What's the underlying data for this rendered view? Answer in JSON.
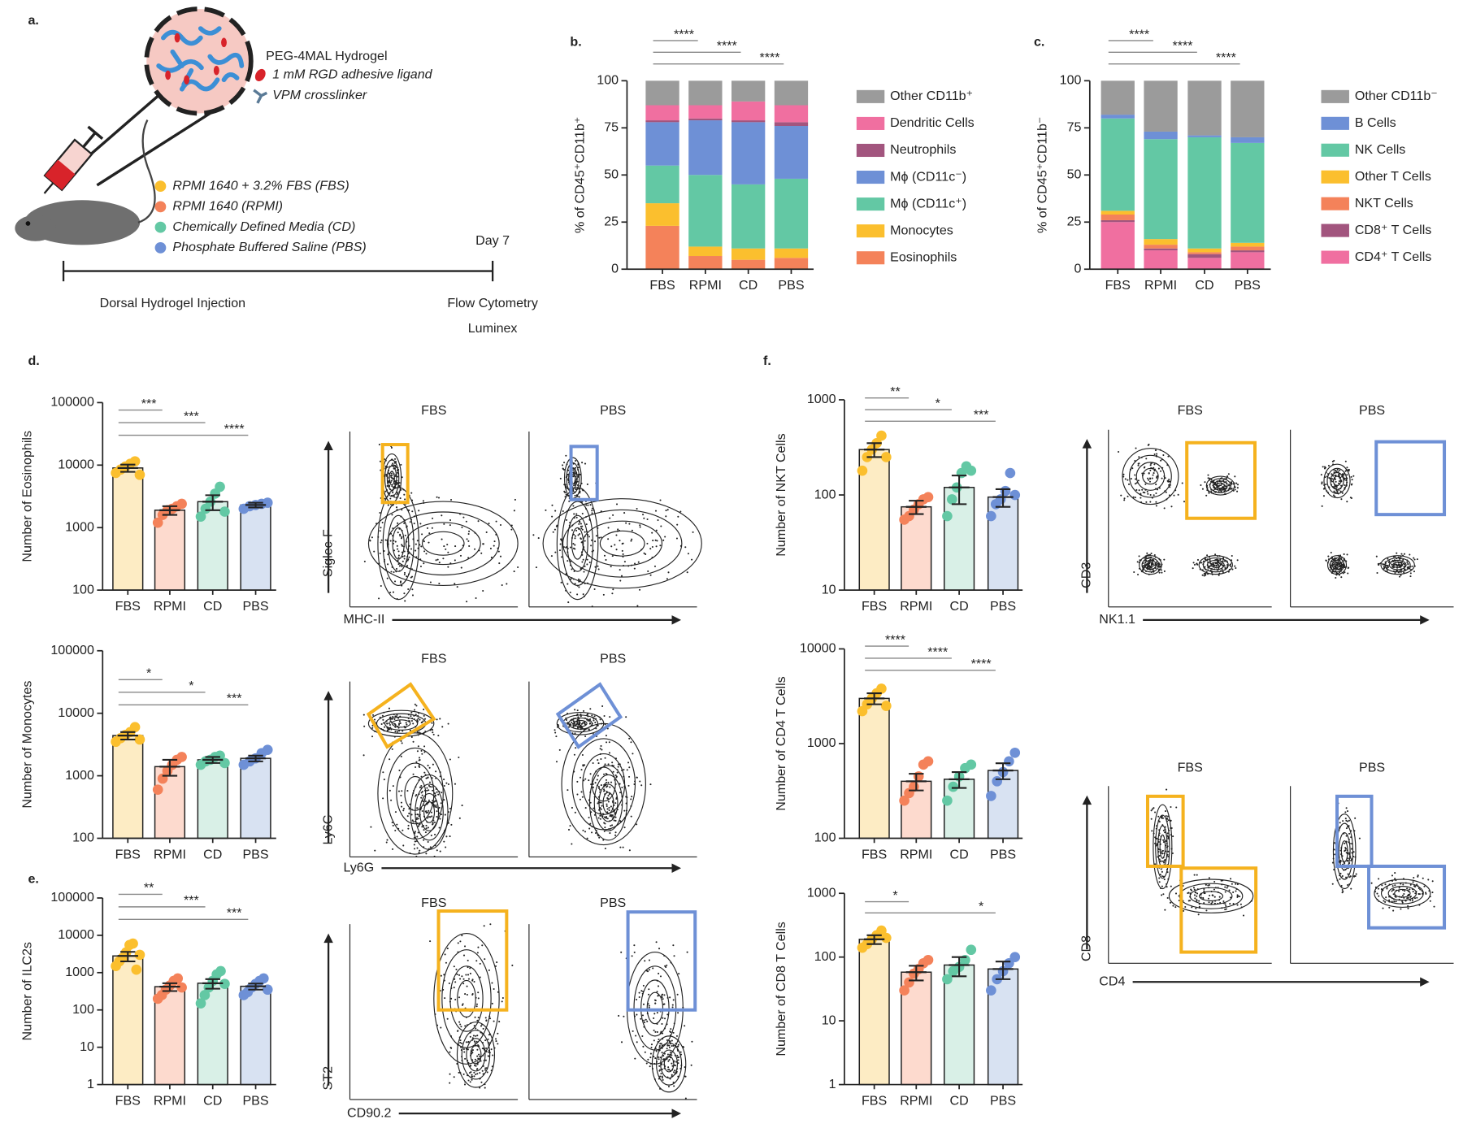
{
  "chart_data": [
    {
      "type": "stacked_bar",
      "y_label": "% of CD45⁺CD11b⁺",
      "categories": [
        "FBS",
        "RPMI",
        "CD",
        "PBS"
      ],
      "series": [
        {
          "name": "Eosinophils",
          "color": "#f4825a",
          "values": [
            23,
            7,
            5,
            6
          ]
        },
        {
          "name": "Monocytes",
          "color": "#fbbf2e",
          "values": [
            12,
            5,
            6,
            5
          ]
        },
        {
          "name": "Mϕ (CD11c⁺)",
          "color": "#63c8a4",
          "values": [
            20,
            38,
            34,
            37
          ]
        },
        {
          "name": "Mϕ (CD11c⁻)",
          "color": "#6e90d6",
          "values": [
            23,
            29,
            33,
            28
          ]
        },
        {
          "name": "Neutrophils",
          "color": "#a2557e",
          "values": [
            1,
            1,
            1,
            2
          ]
        },
        {
          "name": "Dendritic Cells",
          "color": "#f06fa0",
          "values": [
            8,
            7,
            10,
            9
          ]
        },
        {
          "name": "Other CD11b⁺",
          "color": "#9b9b9b",
          "values": [
            13,
            13,
            11,
            13
          ]
        }
      ],
      "ylim": [
        0,
        100
      ],
      "yticks": [
        0,
        25,
        50,
        75,
        100
      ],
      "significance": [
        {
          "from": "FBS",
          "to": "RPMI",
          "label": "****"
        },
        {
          "from": "FBS",
          "to": "CD",
          "label": "****"
        },
        {
          "from": "FBS",
          "to": "PBS",
          "label": "****"
        }
      ]
    },
    {
      "type": "stacked_bar",
      "y_label": "% of CD45⁺CD11b⁻",
      "categories": [
        "FBS",
        "RPMI",
        "CD",
        "PBS"
      ],
      "series": [
        {
          "name": "CD4⁺ T Cells",
          "color": "#f06fa0",
          "values": [
            25,
            10,
            6,
            9
          ]
        },
        {
          "name": "CD8⁺ T Cells",
          "color": "#a2557e",
          "values": [
            1,
            1,
            2,
            1
          ]
        },
        {
          "name": "NKT Cells",
          "color": "#f4825a",
          "values": [
            3,
            2,
            1,
            2
          ]
        },
        {
          "name": "Other T Cells",
          "color": "#fbbf2e",
          "values": [
            2,
            3,
            2,
            2
          ]
        },
        {
          "name": "NK Cells",
          "color": "#63c8a4",
          "values": [
            49,
            53,
            59,
            53
          ]
        },
        {
          "name": "B Cells",
          "color": "#6e90d6",
          "values": [
            2,
            4,
            1,
            3
          ]
        },
        {
          "name": "Other CD11b⁻",
          "color": "#9b9b9b",
          "values": [
            18,
            27,
            29,
            30
          ]
        }
      ],
      "ylim": [
        0,
        100
      ],
      "yticks": [
        0,
        25,
        50,
        75,
        100
      ],
      "significance": [
        {
          "from": "FBS",
          "to": "RPMI",
          "label": "****"
        },
        {
          "from": "FBS",
          "to": "CD",
          "label": "****"
        },
        {
          "from": "FBS",
          "to": "PBS",
          "label": "****"
        }
      ]
    },
    {
      "type": "bar",
      "y_label": "Number of Eosinophils",
      "log_scale": true,
      "categories": [
        "FBS",
        "RPMI",
        "CD",
        "PBS"
      ],
      "values": [
        9000,
        1900,
        2600,
        2300
      ],
      "errors": [
        1200,
        300,
        700,
        200
      ],
      "points": [
        [
          7500,
          8500,
          9500,
          10500,
          11500,
          7000
        ],
        [
          1200,
          1600,
          1900,
          2000,
          2200,
          2400
        ],
        [
          1500,
          2000,
          2600,
          3500,
          4500,
          1800
        ],
        [
          2000,
          2200,
          2300,
          2400,
          2500
        ]
      ],
      "colors": [
        "#fbbf2e",
        "#f4825a",
        "#63c8a4",
        "#6e90d6"
      ],
      "fill_colors": [
        "#fdecc4",
        "#fddace",
        "#d9f0e7",
        "#d8e2f2"
      ],
      "ylim": [
        100,
        100000
      ],
      "yticks": [
        100,
        1000,
        10000,
        100000
      ],
      "significance": [
        {
          "from": "FBS",
          "to": "RPMI",
          "label": "***"
        },
        {
          "from": "FBS",
          "to": "CD",
          "label": "***"
        },
        {
          "from": "FBS",
          "to": "PBS",
          "label": "****"
        }
      ]
    },
    {
      "type": "bar",
      "y_label": "Number of Monocytes",
      "log_scale": true,
      "categories": [
        "FBS",
        "RPMI",
        "CD",
        "PBS"
      ],
      "values": [
        4400,
        1400,
        1800,
        1900
      ],
      "errors": [
        600,
        400,
        200,
        200
      ],
      "points": [
        [
          3500,
          4000,
          4500,
          5000,
          6000,
          3800
        ],
        [
          600,
          900,
          1200,
          1500,
          1800,
          2000
        ],
        [
          1500,
          1700,
          1800,
          2000,
          2100,
          1600
        ],
        [
          1500,
          1700,
          1900,
          2300,
          2600
        ]
      ],
      "colors": [
        "#fbbf2e",
        "#f4825a",
        "#63c8a4",
        "#6e90d6"
      ],
      "fill_colors": [
        "#fdecc4",
        "#fddace",
        "#d9f0e7",
        "#d8e2f2"
      ],
      "ylim": [
        100,
        100000
      ],
      "yticks": [
        100,
        1000,
        10000,
        100000
      ],
      "significance": [
        {
          "from": "FBS",
          "to": "RPMI",
          "label": "*"
        },
        {
          "from": "FBS",
          "to": "CD",
          "label": "*"
        },
        {
          "from": "FBS",
          "to": "PBS",
          "label": "***"
        }
      ]
    },
    {
      "type": "bar",
      "y_label": "Number of ILC2s",
      "log_scale": true,
      "categories": [
        "FBS",
        "RPMI",
        "CD",
        "PBS"
      ],
      "values": [
        2800,
        420,
        520,
        430
      ],
      "errors": [
        800,
        100,
        150,
        80
      ],
      "points": [
        [
          1500,
          2000,
          2500,
          3500,
          5500,
          6000,
          1200,
          3000
        ],
        [
          200,
          250,
          350,
          450,
          600,
          700,
          400
        ],
        [
          150,
          250,
          400,
          600,
          900,
          1100,
          500
        ],
        [
          250,
          300,
          400,
          500,
          600,
          700,
          350
        ]
      ],
      "colors": [
        "#fbbf2e",
        "#f4825a",
        "#63c8a4",
        "#6e90d6"
      ],
      "fill_colors": [
        "#fdecc4",
        "#fddace",
        "#d9f0e7",
        "#d8e2f2"
      ],
      "ylim": [
        1,
        100000
      ],
      "yticks": [
        1,
        10,
        100,
        1000,
        10000,
        100000
      ],
      "significance": [
        {
          "from": "FBS",
          "to": "RPMI",
          "label": "**"
        },
        {
          "from": "FBS",
          "to": "CD",
          "label": "***"
        },
        {
          "from": "FBS",
          "to": "PBS",
          "label": "***"
        }
      ]
    },
    {
      "type": "bar",
      "y_label": "Number of NKT Cells",
      "log_scale": true,
      "categories": [
        "FBS",
        "RPMI",
        "CD",
        "PBS"
      ],
      "values": [
        300,
        75,
        120,
        95
      ],
      "errors": [
        50,
        12,
        40,
        20
      ],
      "points": [
        [
          180,
          250,
          300,
          350,
          420,
          250
        ],
        [
          55,
          60,
          70,
          80,
          90,
          95
        ],
        [
          60,
          90,
          120,
          170,
          200,
          180
        ],
        [
          60,
          80,
          90,
          110,
          170,
          100
        ]
      ],
      "colors": [
        "#fbbf2e",
        "#f4825a",
        "#63c8a4",
        "#6e90d6"
      ],
      "fill_colors": [
        "#fdecc4",
        "#fddace",
        "#d9f0e7",
        "#d8e2f2"
      ],
      "ylim": [
        10,
        1000
      ],
      "yticks": [
        10,
        100,
        1000
      ],
      "significance": [
        {
          "from": "FBS",
          "to": "RPMI",
          "label": "**"
        },
        {
          "from": "FBS",
          "to": "CD",
          "label": "*"
        },
        {
          "from": "FBS",
          "to": "PBS",
          "label": "***"
        }
      ]
    },
    {
      "type": "bar",
      "y_label": "Number of CD4 T Cells",
      "log_scale": true,
      "categories": [
        "FBS",
        "RPMI",
        "CD",
        "PBS"
      ],
      "values": [
        3000,
        400,
        420,
        520
      ],
      "errors": [
        400,
        80,
        80,
        100
      ],
      "points": [
        [
          2200,
          2600,
          3000,
          3400,
          3800,
          2500
        ],
        [
          250,
          300,
          350,
          450,
          600,
          650
        ],
        [
          250,
          350,
          450,
          550,
          600
        ],
        [
          280,
          400,
          500,
          650,
          800
        ]
      ],
      "colors": [
        "#fbbf2e",
        "#f4825a",
        "#63c8a4",
        "#6e90d6"
      ],
      "fill_colors": [
        "#fdecc4",
        "#fddace",
        "#d9f0e7",
        "#d8e2f2"
      ],
      "ylim": [
        100,
        10000
      ],
      "yticks": [
        100,
        1000,
        10000
      ],
      "significance": [
        {
          "from": "FBS",
          "to": "RPMI",
          "label": "****"
        },
        {
          "from": "FBS",
          "to": "CD",
          "label": "****"
        },
        {
          "from": "FBS",
          "to": "PBS",
          "label": "****"
        }
      ]
    },
    {
      "type": "bar",
      "y_label": "Number of CD8 T Cells",
      "log_scale": true,
      "categories": [
        "FBS",
        "RPMI",
        "CD",
        "PBS"
      ],
      "values": [
        190,
        58,
        75,
        65
      ],
      "errors": [
        30,
        15,
        25,
        20
      ],
      "points": [
        [
          140,
          160,
          190,
          220,
          260,
          200
        ],
        [
          30,
          40,
          55,
          65,
          80,
          90
        ],
        [
          45,
          60,
          70,
          90,
          130
        ],
        [
          30,
          45,
          60,
          80,
          100
        ]
      ],
      "colors": [
        "#fbbf2e",
        "#f4825a",
        "#63c8a4",
        "#6e90d6"
      ],
      "fill_colors": [
        "#fdecc4",
        "#fddace",
        "#d9f0e7",
        "#d8e2f2"
      ],
      "ylim": [
        1,
        1000
      ],
      "yticks": [
        1,
        10,
        100,
        1000
      ],
      "significance": [
        {
          "from": "FBS",
          "to": "RPMI",
          "label": "*"
        },
        {
          "from": "FBS",
          "to": "PBS",
          "label": "*"
        }
      ]
    }
  ],
  "figure": {
    "panel_labels": [
      "a.",
      "b.",
      "c.",
      "d.",
      "e.",
      "f."
    ],
    "schematic": {
      "hydrogel": "PEG-4MAL Hydrogel",
      "ligand": "1 mM RGD adhesive ligand",
      "crosslinker": "VPM crosslinker",
      "groups": [
        "RPMI 1640 + 3.2% FBS (FBS)",
        "RPMI 1640 (RPMI)",
        "Chemically Defined Media (CD)",
        "Phosphate Buffered Saline (PBS)"
      ],
      "timepoint": "Day 7",
      "start": "Dorsal Hydrogel Injection",
      "readouts": [
        "Flow Cytometry",
        "Luminex"
      ]
    },
    "flow_plots": [
      {
        "titles": [
          "FBS",
          "PBS"
        ],
        "y_label": "Siglec-F",
        "x_label": "MHC-II"
      },
      {
        "titles": [
          "FBS",
          "PBS"
        ],
        "y_label": "Ly6C",
        "x_label": "Ly6G"
      },
      {
        "titles": [
          "FBS",
          "PBS"
        ],
        "y_label": "ST2",
        "x_label": "CD90.2"
      },
      {
        "titles": [
          "FBS",
          "PBS"
        ],
        "y_label": "CD3",
        "x_label": "NK1.1"
      },
      {
        "titles": [
          "FBS",
          "PBS"
        ],
        "y_label": "CD8",
        "x_label": "CD4"
      }
    ]
  }
}
